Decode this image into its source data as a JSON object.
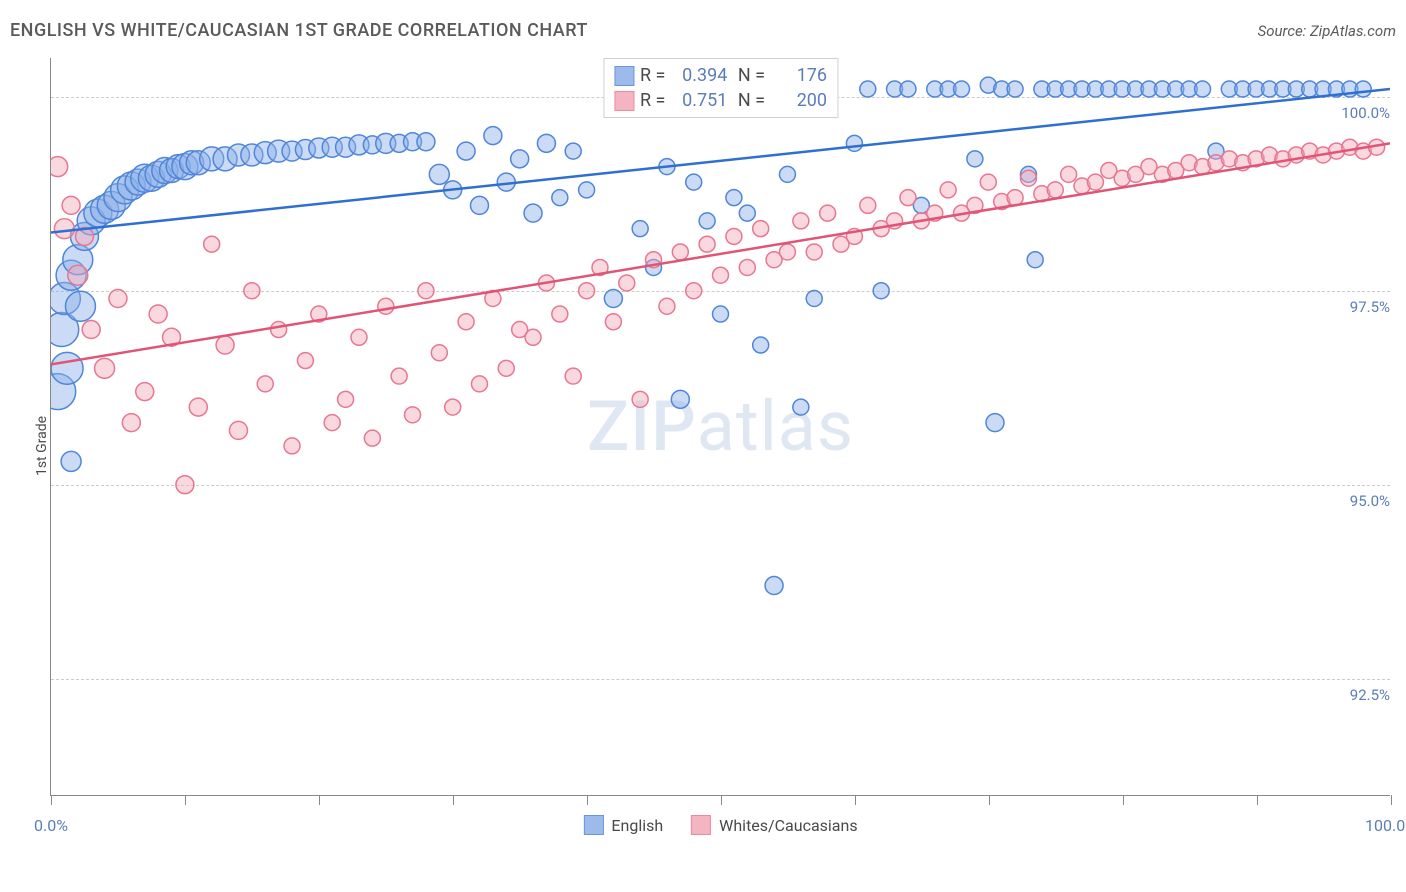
{
  "title": "ENGLISH VS WHITE/CAUCASIAN 1ST GRADE CORRELATION CHART",
  "source": "Source: ZipAtlas.com",
  "ylabel": "1st Grade",
  "watermark_a": "ZIP",
  "watermark_b": "atlas",
  "chart": {
    "type": "scatter",
    "background_color": "#ffffff",
    "grid_color": "#cccccc",
    "axis_color": "#888888",
    "text_color": "#4a4a4a",
    "tick_color": "#5b7db8",
    "xlim": [
      0,
      100
    ],
    "ylim": [
      91.0,
      100.5
    ],
    "x_ticks_minor": [
      0,
      10,
      20,
      30,
      40,
      50,
      60,
      70,
      80,
      90,
      100
    ],
    "x_labels": [
      {
        "x": 0,
        "label": "0.0%"
      },
      {
        "x": 100,
        "label": "100.0%"
      }
    ],
    "y_gridlines": [
      92.5,
      95.0,
      97.5,
      100.0
    ],
    "y_labels": [
      "92.5%",
      "95.0%",
      "97.5%",
      "100.0%"
    ],
    "series": [
      {
        "name": "English",
        "legend_label": "English",
        "color_fill": "#8bb0e8",
        "color_stroke": "#4f86d9",
        "fill_opacity": 0.45,
        "marker_r_min": 6,
        "marker_r_max": 18,
        "trend": {
          "x0": 0,
          "y0": 98.25,
          "x1": 100,
          "y1": 100.1,
          "stroke": "#2f6fd0",
          "width": 2.5
        },
        "R": "0.394",
        "N": "176",
        "points": [
          [
            0.5,
            96.2,
            18
          ],
          [
            0.8,
            97.0,
            17
          ],
          [
            1.0,
            97.4,
            16
          ],
          [
            1.2,
            96.5,
            16
          ],
          [
            1.5,
            97.7,
            15
          ],
          [
            1.5,
            95.3,
            10
          ],
          [
            2.0,
            97.9,
            15
          ],
          [
            2.2,
            97.3,
            15
          ],
          [
            2.5,
            98.2,
            14
          ],
          [
            3.0,
            98.4,
            14
          ],
          [
            3.5,
            98.5,
            14
          ],
          [
            4.0,
            98.55,
            14
          ],
          [
            4.5,
            98.6,
            14
          ],
          [
            5.0,
            98.7,
            14
          ],
          [
            5.5,
            98.8,
            14
          ],
          [
            6.0,
            98.85,
            14
          ],
          [
            6.5,
            98.9,
            13
          ],
          [
            7.0,
            98.95,
            14
          ],
          [
            7.5,
            98.95,
            13
          ],
          [
            8.0,
            99.0,
            13
          ],
          [
            8.5,
            99.05,
            13
          ],
          [
            9.0,
            99.05,
            12
          ],
          [
            9.5,
            99.1,
            12
          ],
          [
            10.0,
            99.1,
            13
          ],
          [
            10.5,
            99.15,
            12
          ],
          [
            11.0,
            99.15,
            12
          ],
          [
            12.0,
            99.2,
            12
          ],
          [
            13.0,
            99.2,
            12
          ],
          [
            14.0,
            99.25,
            11
          ],
          [
            15.0,
            99.25,
            11
          ],
          [
            16.0,
            99.28,
            11
          ],
          [
            17.0,
            99.3,
            11
          ],
          [
            18.0,
            99.3,
            10
          ],
          [
            19.0,
            99.32,
            10
          ],
          [
            20.0,
            99.34,
            10
          ],
          [
            21.0,
            99.35,
            10
          ],
          [
            22.0,
            99.35,
            10
          ],
          [
            23.0,
            99.38,
            10
          ],
          [
            24.0,
            99.38,
            9
          ],
          [
            25.0,
            99.4,
            10
          ],
          [
            26.0,
            99.4,
            9
          ],
          [
            27.0,
            99.42,
            9
          ],
          [
            28.0,
            99.42,
            9
          ],
          [
            29.0,
            99.0,
            10
          ],
          [
            30.0,
            98.8,
            9
          ],
          [
            31.0,
            99.3,
            9
          ],
          [
            32.0,
            98.6,
            9
          ],
          [
            33.0,
            99.5,
            9
          ],
          [
            34.0,
            98.9,
            9
          ],
          [
            35.0,
            99.2,
            9
          ],
          [
            36.0,
            98.5,
            9
          ],
          [
            37.0,
            99.4,
            9
          ],
          [
            38.0,
            98.7,
            8
          ],
          [
            39.0,
            99.3,
            8
          ],
          [
            40.0,
            98.8,
            8
          ],
          [
            42.0,
            97.4,
            9
          ],
          [
            44.0,
            98.3,
            8
          ],
          [
            45.0,
            97.8,
            8
          ],
          [
            46.0,
            99.1,
            8
          ],
          [
            47.0,
            96.1,
            9
          ],
          [
            48.0,
            98.9,
            8
          ],
          [
            49.0,
            98.4,
            8
          ],
          [
            50.0,
            97.2,
            8
          ],
          [
            51.0,
            98.7,
            8
          ],
          [
            52.0,
            98.5,
            8
          ],
          [
            53.0,
            96.8,
            8
          ],
          [
            54.0,
            93.7,
            9
          ],
          [
            55.0,
            99.0,
            8
          ],
          [
            56.0,
            96.0,
            8
          ],
          [
            57.0,
            97.4,
            8
          ],
          [
            60.0,
            99.4,
            8
          ],
          [
            61.0,
            100.1,
            8
          ],
          [
            62.0,
            97.5,
            8
          ],
          [
            63.0,
            100.1,
            8
          ],
          [
            64.0,
            100.1,
            8
          ],
          [
            65.0,
            98.6,
            8
          ],
          [
            66.0,
            100.1,
            8
          ],
          [
            67.0,
            100.1,
            8
          ],
          [
            68.0,
            100.1,
            8
          ],
          [
            69.0,
            99.2,
            8
          ],
          [
            70.0,
            100.15,
            8
          ],
          [
            70.5,
            95.8,
            9
          ],
          [
            71.0,
            100.1,
            8
          ],
          [
            72.0,
            100.1,
            8
          ],
          [
            73.0,
            99.0,
            8
          ],
          [
            73.5,
            97.9,
            8
          ],
          [
            74.0,
            100.1,
            8
          ],
          [
            75.0,
            100.1,
            8
          ],
          [
            76.0,
            100.1,
            8
          ],
          [
            77.0,
            100.1,
            8
          ],
          [
            78.0,
            100.1,
            8
          ],
          [
            79.0,
            100.1,
            8
          ],
          [
            80.0,
            100.1,
            8
          ],
          [
            81.0,
            100.1,
            8
          ],
          [
            82.0,
            100.1,
            8
          ],
          [
            83.0,
            100.1,
            8
          ],
          [
            84.0,
            100.1,
            8
          ],
          [
            85.0,
            100.1,
            8
          ],
          [
            86.0,
            100.1,
            8
          ],
          [
            87.0,
            99.3,
            8
          ],
          [
            88.0,
            100.1,
            8
          ],
          [
            89.0,
            100.1,
            8
          ],
          [
            90.0,
            100.1,
            8
          ],
          [
            91.0,
            100.1,
            8
          ],
          [
            92.0,
            100.1,
            8
          ],
          [
            93.0,
            100.1,
            8
          ],
          [
            94.0,
            100.1,
            8
          ],
          [
            95.0,
            100.1,
            8
          ],
          [
            96.0,
            100.1,
            8
          ],
          [
            97.0,
            100.1,
            8
          ],
          [
            98.0,
            100.1,
            8
          ]
        ]
      },
      {
        "name": "Whites/Caucasians",
        "legend_label": "Whites/Caucasians",
        "color_fill": "#f4a8b8",
        "color_stroke": "#e87790",
        "fill_opacity": 0.45,
        "marker_r_min": 6,
        "marker_r_max": 16,
        "trend": {
          "x0": 0,
          "y0": 96.55,
          "x1": 100,
          "y1": 99.4,
          "stroke": "#e05576",
          "width": 2.5
        },
        "R": "0.751",
        "N": "200",
        "points": [
          [
            0.5,
            99.1,
            10
          ],
          [
            1.0,
            98.3,
            10
          ],
          [
            1.5,
            98.6,
            9
          ],
          [
            2.0,
            97.7,
            10
          ],
          [
            2.5,
            98.2,
            9
          ],
          [
            3.0,
            97.0,
            9
          ],
          [
            4.0,
            96.5,
            10
          ],
          [
            5.0,
            97.4,
            9
          ],
          [
            6.0,
            95.8,
            9
          ],
          [
            7.0,
            96.2,
            9
          ],
          [
            8.0,
            97.2,
            9
          ],
          [
            9.0,
            96.9,
            9
          ],
          [
            10.0,
            95.0,
            9
          ],
          [
            11.0,
            96.0,
            9
          ],
          [
            12.0,
            98.1,
            8
          ],
          [
            13.0,
            96.8,
            9
          ],
          [
            14.0,
            95.7,
            9
          ],
          [
            15.0,
            97.5,
            8
          ],
          [
            16.0,
            96.3,
            8
          ],
          [
            17.0,
            97.0,
            8
          ],
          [
            18.0,
            95.5,
            8
          ],
          [
            19.0,
            96.6,
            8
          ],
          [
            20.0,
            97.2,
            8
          ],
          [
            21.0,
            95.8,
            8
          ],
          [
            22.0,
            96.1,
            8
          ],
          [
            23.0,
            96.9,
            8
          ],
          [
            24.0,
            95.6,
            8
          ],
          [
            25.0,
            97.3,
            8
          ],
          [
            26.0,
            96.4,
            8
          ],
          [
            27.0,
            95.9,
            8
          ],
          [
            28.0,
            97.5,
            8
          ],
          [
            29.0,
            96.7,
            8
          ],
          [
            30.0,
            96.0,
            8
          ],
          [
            31.0,
            97.1,
            8
          ],
          [
            32.0,
            96.3,
            8
          ],
          [
            33.0,
            97.4,
            8
          ],
          [
            34.0,
            96.5,
            8
          ],
          [
            35.0,
            97.0,
            8
          ],
          [
            36.0,
            96.9,
            8
          ],
          [
            37.0,
            97.6,
            8
          ],
          [
            38.0,
            97.2,
            8
          ],
          [
            39.0,
            96.4,
            8
          ],
          [
            40.0,
            97.5,
            8
          ],
          [
            41.0,
            97.8,
            8
          ],
          [
            42.0,
            97.1,
            8
          ],
          [
            43.0,
            97.6,
            8
          ],
          [
            44.0,
            96.1,
            8
          ],
          [
            45.0,
            97.9,
            8
          ],
          [
            46.0,
            97.3,
            8
          ],
          [
            47.0,
            98.0,
            8
          ],
          [
            48.0,
            97.5,
            8
          ],
          [
            49.0,
            98.1,
            8
          ],
          [
            50.0,
            97.7,
            8
          ],
          [
            51.0,
            98.2,
            8
          ],
          [
            52.0,
            97.8,
            8
          ],
          [
            53.0,
            98.3,
            8
          ],
          [
            54.0,
            97.9,
            8
          ],
          [
            55.0,
            98.0,
            8
          ],
          [
            56.0,
            98.4,
            8
          ],
          [
            57.0,
            98.0,
            8
          ],
          [
            58.0,
            98.5,
            8
          ],
          [
            59.0,
            98.1,
            8
          ],
          [
            60.0,
            98.2,
            8
          ],
          [
            61.0,
            98.6,
            8
          ],
          [
            62.0,
            98.3,
            8
          ],
          [
            63.0,
            98.4,
            8
          ],
          [
            64.0,
            98.7,
            8
          ],
          [
            65.0,
            98.4,
            8
          ],
          [
            66.0,
            98.5,
            8
          ],
          [
            67.0,
            98.8,
            8
          ],
          [
            68.0,
            98.5,
            8
          ],
          [
            69.0,
            98.6,
            8
          ],
          [
            70.0,
            98.9,
            8
          ],
          [
            71.0,
            98.65,
            8
          ],
          [
            72.0,
            98.7,
            8
          ],
          [
            73.0,
            98.95,
            8
          ],
          [
            74.0,
            98.75,
            8
          ],
          [
            75.0,
            98.8,
            8
          ],
          [
            76.0,
            99.0,
            8
          ],
          [
            77.0,
            98.85,
            8
          ],
          [
            78.0,
            98.9,
            8
          ],
          [
            79.0,
            99.05,
            8
          ],
          [
            80.0,
            98.95,
            8
          ],
          [
            81.0,
            99.0,
            8
          ],
          [
            82.0,
            99.1,
            8
          ],
          [
            83.0,
            99.0,
            8
          ],
          [
            84.0,
            99.05,
            8
          ],
          [
            85.0,
            99.15,
            8
          ],
          [
            86.0,
            99.1,
            8
          ],
          [
            87.0,
            99.15,
            8
          ],
          [
            88.0,
            99.2,
            8
          ],
          [
            89.0,
            99.15,
            8
          ],
          [
            90.0,
            99.2,
            8
          ],
          [
            91.0,
            99.25,
            8
          ],
          [
            92.0,
            99.2,
            8
          ],
          [
            93.0,
            99.25,
            8
          ],
          [
            94.0,
            99.3,
            8
          ],
          [
            95.0,
            99.25,
            8
          ],
          [
            96.0,
            99.3,
            8
          ],
          [
            97.0,
            99.35,
            8
          ],
          [
            98.0,
            99.3,
            8
          ],
          [
            99.0,
            99.35,
            8
          ]
        ]
      }
    ]
  }
}
